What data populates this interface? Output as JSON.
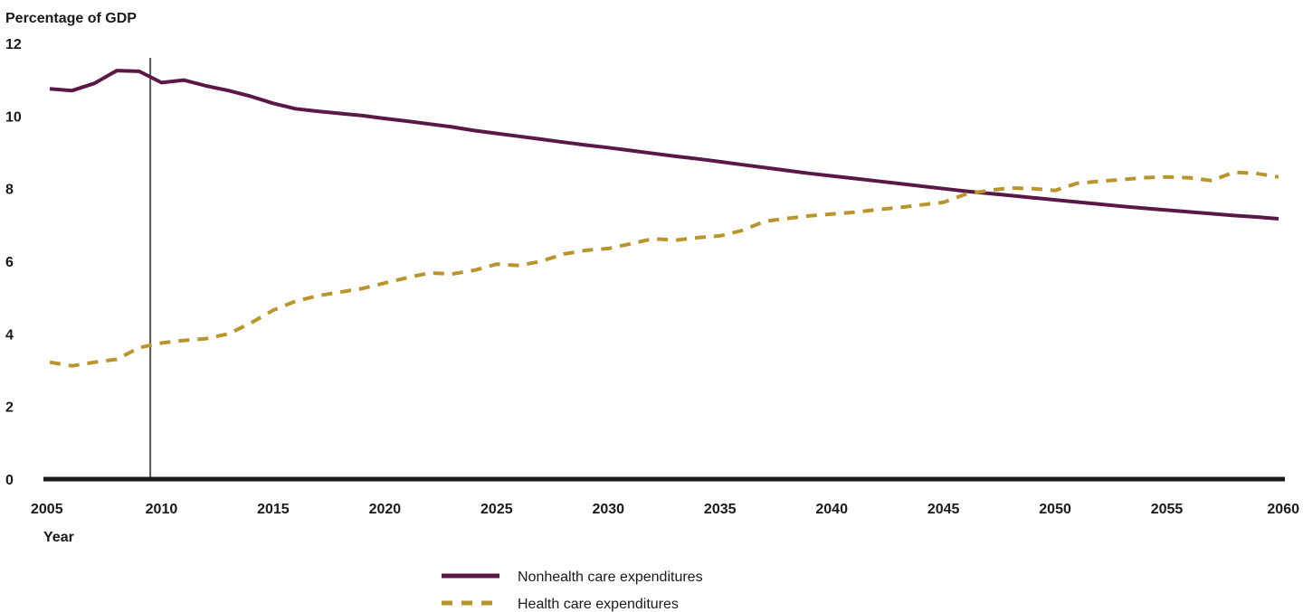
{
  "chart_data": {
    "type": "line",
    "ylabel": "Percentage of GDP",
    "xlabel": "Year",
    "ylim": [
      0,
      12
    ],
    "xlim": [
      2005,
      2060
    ],
    "y_ticks": [
      "0",
      "2",
      "4",
      "6",
      "8",
      "10",
      "12"
    ],
    "x_ticks": [
      "2005",
      "2010",
      "2015",
      "2020",
      "2025",
      "2030",
      "2035",
      "2040",
      "2045",
      "2050",
      "2055",
      "2060"
    ],
    "marker_year": 2009.5,
    "series": [
      {
        "name": "Nonhealth care expenditures",
        "color": "#5a1846",
        "style": "solid",
        "x": [
          2005,
          2006,
          2007,
          2008,
          2009,
          2010,
          2011,
          2012,
          2013,
          2014,
          2015,
          2016,
          2017,
          2018,
          2019,
          2020,
          2021,
          2022,
          2023,
          2024,
          2025,
          2026,
          2027,
          2028,
          2029,
          2030,
          2031,
          2032,
          2033,
          2034,
          2035,
          2036,
          2037,
          2038,
          2039,
          2040,
          2041,
          2042,
          2043,
          2044,
          2045,
          2046,
          2047,
          2048,
          2049,
          2050,
          2051,
          2052,
          2053,
          2054,
          2055,
          2056,
          2057,
          2058,
          2059,
          2060
        ],
        "values": [
          10.75,
          10.7,
          10.9,
          11.25,
          11.23,
          10.92,
          10.99,
          10.83,
          10.7,
          10.54,
          10.35,
          10.2,
          10.13,
          10.07,
          10.01,
          9.93,
          9.86,
          9.78,
          9.7,
          9.6,
          9.52,
          9.44,
          9.36,
          9.28,
          9.2,
          9.13,
          9.05,
          8.97,
          8.89,
          8.82,
          8.74,
          8.66,
          8.58,
          8.5,
          8.42,
          8.35,
          8.28,
          8.21,
          8.14,
          8.07,
          8.0,
          7.93,
          7.87,
          7.81,
          7.75,
          7.69,
          7.63,
          7.57,
          7.51,
          7.46,
          7.41,
          7.36,
          7.31,
          7.26,
          7.22,
          7.17
        ]
      },
      {
        "name": "Health care expenditures",
        "color": "#b8952f",
        "style": "dashed",
        "x": [
          2005,
          2006,
          2007,
          2008,
          2009,
          2010,
          2011,
          2012,
          2013,
          2014,
          2015,
          2016,
          2017,
          2018,
          2019,
          2020,
          2021,
          2022,
          2023,
          2024,
          2025,
          2026,
          2027,
          2028,
          2029,
          2030,
          2031,
          2032,
          2033,
          2034,
          2035,
          2036,
          2037,
          2038,
          2039,
          2040,
          2041,
          2042,
          2043,
          2044,
          2045,
          2046,
          2047,
          2048,
          2049,
          2050,
          2051,
          2052,
          2053,
          2054,
          2055,
          2056,
          2057,
          2058,
          2059,
          2060
        ],
        "values": [
          3.22,
          3.12,
          3.22,
          3.3,
          3.62,
          3.75,
          3.82,
          3.87,
          4.0,
          4.3,
          4.65,
          4.9,
          5.05,
          5.15,
          5.25,
          5.4,
          5.55,
          5.68,
          5.65,
          5.75,
          5.92,
          5.88,
          6.0,
          6.2,
          6.3,
          6.35,
          6.48,
          6.62,
          6.58,
          6.65,
          6.7,
          6.85,
          7.1,
          7.18,
          7.25,
          7.3,
          7.35,
          7.42,
          7.48,
          7.55,
          7.62,
          7.85,
          7.95,
          8.02,
          8.0,
          7.95,
          8.15,
          8.2,
          8.25,
          8.3,
          8.32,
          8.3,
          8.22,
          8.45,
          8.42,
          8.32
        ]
      }
    ],
    "legend": {
      "placement": "bottom"
    }
  }
}
